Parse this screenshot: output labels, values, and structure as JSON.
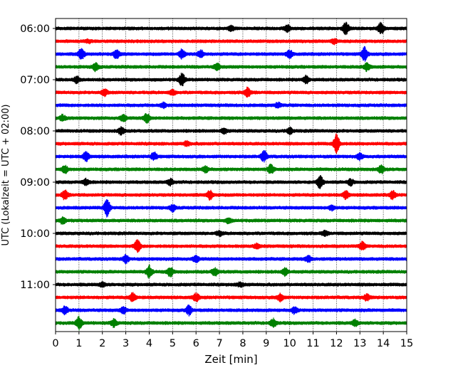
{
  "chart_data": {
    "type": "line",
    "title": "",
    "xlabel": "Zeit  [min]",
    "ylabel": "UTC (Lokalzeit = UTC + 02:00)",
    "xlim": [
      0,
      15
    ],
    "x_ticks": [
      0,
      1,
      2,
      3,
      4,
      5,
      6,
      7,
      8,
      9,
      10,
      11,
      12,
      13,
      14,
      15
    ],
    "x_tick_labels": [
      "0",
      "1",
      "2",
      "3",
      "4",
      "5",
      "6",
      "7",
      "8",
      "9",
      "10",
      "11",
      "12",
      "13",
      "14",
      "15"
    ],
    "y_ticks": [
      "06:00",
      "07:00",
      "08:00",
      "09:00",
      "10:00",
      "11:00"
    ],
    "grid_x": true,
    "trace_interval_min": 15,
    "trace_colors": [
      "#000000",
      "#ff0000",
      "#0000ff",
      "#008000"
    ],
    "series": [
      {
        "start": "06:00",
        "color": "#000000",
        "bursts": [
          [
            12.4,
            8
          ],
          [
            13.9,
            7
          ],
          [
            9.9,
            4
          ],
          [
            7.5,
            3
          ]
        ]
      },
      {
        "start": "06:15",
        "color": "#ff0000",
        "bursts": [
          [
            11.9,
            3
          ],
          [
            1.4,
            2
          ]
        ]
      },
      {
        "start": "06:30",
        "color": "#0000ff",
        "bursts": [
          [
            1.1,
            7
          ],
          [
            2.6,
            6
          ],
          [
            5.4,
            6
          ],
          [
            6.2,
            5
          ],
          [
            10.0,
            5
          ],
          [
            13.2,
            9
          ]
        ]
      },
      {
        "start": "06:45",
        "color": "#008000",
        "bursts": [
          [
            1.7,
            5
          ],
          [
            6.9,
            4
          ],
          [
            13.3,
            5
          ]
        ]
      },
      {
        "start": "07:00",
        "color": "#000000",
        "bursts": [
          [
            5.4,
            8
          ],
          [
            10.7,
            5
          ],
          [
            0.9,
            4
          ]
        ]
      },
      {
        "start": "07:15",
        "color": "#ff0000",
        "bursts": [
          [
            2.1,
            4
          ],
          [
            8.2,
            6
          ],
          [
            5.0,
            3
          ]
        ]
      },
      {
        "start": "07:30",
        "color": "#0000ff",
        "bursts": [
          [
            4.6,
            3
          ],
          [
            9.5,
            3
          ]
        ]
      },
      {
        "start": "07:45",
        "color": "#008000",
        "bursts": [
          [
            0.3,
            4
          ],
          [
            3.9,
            6
          ],
          [
            2.9,
            4
          ]
        ]
      },
      {
        "start": "08:00",
        "color": "#000000",
        "bursts": [
          [
            2.8,
            5
          ],
          [
            10.0,
            4
          ],
          [
            7.2,
            3
          ]
        ]
      },
      {
        "start": "08:15",
        "color": "#ff0000",
        "bursts": [
          [
            12.0,
            13
          ],
          [
            5.6,
            3
          ]
        ]
      },
      {
        "start": "08:30",
        "color": "#0000ff",
        "bursts": [
          [
            1.3,
            6
          ],
          [
            4.2,
            5
          ],
          [
            8.9,
            7
          ],
          [
            13.0,
            4
          ]
        ]
      },
      {
        "start": "08:45",
        "color": "#008000",
        "bursts": [
          [
            0.4,
            5
          ],
          [
            6.4,
            4
          ],
          [
            9.2,
            6
          ],
          [
            13.9,
            5
          ]
        ]
      },
      {
        "start": "09:00",
        "color": "#000000",
        "bursts": [
          [
            11.3,
            8
          ],
          [
            1.3,
            4
          ],
          [
            4.9,
            4
          ],
          [
            12.6,
            4
          ]
        ]
      },
      {
        "start": "09:15",
        "color": "#ff0000",
        "bursts": [
          [
            0.4,
            6
          ],
          [
            6.6,
            6
          ],
          [
            12.4,
            5
          ],
          [
            14.4,
            5
          ]
        ]
      },
      {
        "start": "09:30",
        "color": "#0000ff",
        "bursts": [
          [
            2.2,
            11
          ],
          [
            5.0,
            4
          ],
          [
            11.8,
            3
          ]
        ]
      },
      {
        "start": "09:45",
        "color": "#008000",
        "bursts": [
          [
            0.3,
            4
          ],
          [
            7.4,
            3
          ]
        ]
      },
      {
        "start": "10:00",
        "color": "#000000",
        "bursts": [
          [
            7.0,
            3
          ],
          [
            11.5,
            3
          ]
        ]
      },
      {
        "start": "10:15",
        "color": "#ff0000",
        "bursts": [
          [
            3.5,
            8
          ],
          [
            13.1,
            5
          ],
          [
            8.6,
            3
          ]
        ]
      },
      {
        "start": "10:30",
        "color": "#0000ff",
        "bursts": [
          [
            3.0,
            5
          ],
          [
            6.0,
            4
          ],
          [
            10.8,
            4
          ]
        ]
      },
      {
        "start": "10:45",
        "color": "#008000",
        "bursts": [
          [
            4.0,
            8
          ],
          [
            4.9,
            6
          ],
          [
            6.8,
            5
          ],
          [
            9.8,
            5
          ]
        ]
      },
      {
        "start": "11:00",
        "color": "#000000",
        "bursts": [
          [
            2.0,
            3
          ],
          [
            7.9,
            3
          ]
        ]
      },
      {
        "start": "11:15",
        "color": "#ff0000",
        "bursts": [
          [
            3.3,
            6
          ],
          [
            6.0,
            5
          ],
          [
            9.6,
            5
          ],
          [
            13.3,
            4
          ]
        ]
      },
      {
        "start": "11:30",
        "color": "#0000ff",
        "bursts": [
          [
            0.4,
            5
          ],
          [
            2.9,
            4
          ],
          [
            5.7,
            6
          ],
          [
            10.2,
            4
          ]
        ]
      },
      {
        "start": "11:45",
        "color": "#008000",
        "bursts": [
          [
            1.0,
            8
          ],
          [
            2.5,
            5
          ],
          [
            9.3,
            5
          ],
          [
            12.8,
            4
          ]
        ]
      }
    ]
  }
}
